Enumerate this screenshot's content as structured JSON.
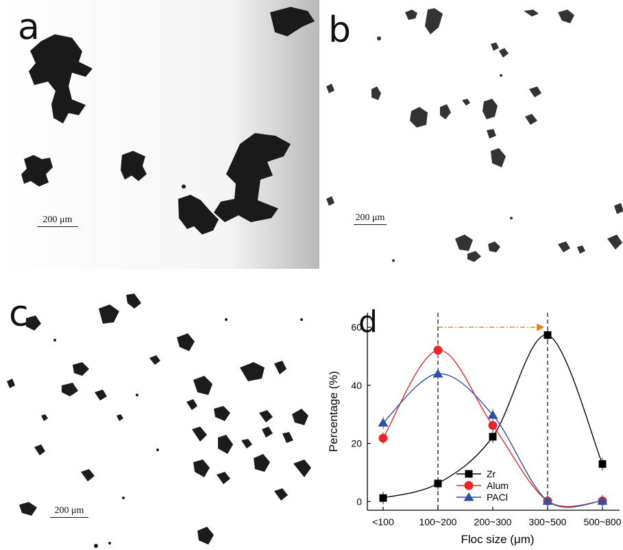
{
  "panels": {
    "a": {
      "letter": "a",
      "scale": "200 μm"
    },
    "b": {
      "letter": "b",
      "scale": "200 μm"
    },
    "c": {
      "letter": "c",
      "scale": "200 μm"
    },
    "d": {
      "letter": "d"
    }
  },
  "chart_data": {
    "type": "line",
    "title": "",
    "xlabel": "Floc size (μm)",
    "ylabel": "Percentage (%)",
    "categories": [
      "<100",
      "100~200",
      "200~300",
      "300~500",
      "500~800"
    ],
    "ylim": [
      -3,
      65
    ],
    "yticks": [
      0,
      20,
      40,
      60
    ],
    "grid": false,
    "legend": "bottom-left",
    "series": [
      {
        "name": "Zr",
        "values": [
          1.2,
          6.2,
          22.3,
          57.3,
          12.9
        ],
        "color": "#000000",
        "marker": "square"
      },
      {
        "name": "Alum",
        "values": [
          21.8,
          52.1,
          26.2,
          0.2,
          0.2
        ],
        "color": "#e8262a",
        "marker": "circle"
      },
      {
        "name": "PACl",
        "values": [
          27.1,
          44.0,
          29.8,
          0.2,
          0.2
        ],
        "color": "#2f4fa3",
        "marker": "triangle"
      }
    ],
    "annotations": {
      "vlines_at": [
        "100~200",
        "300~500"
      ],
      "arrow": {
        "from": "100~200",
        "to": "300~500",
        "y": 60,
        "color": "#f07d1a"
      }
    }
  }
}
